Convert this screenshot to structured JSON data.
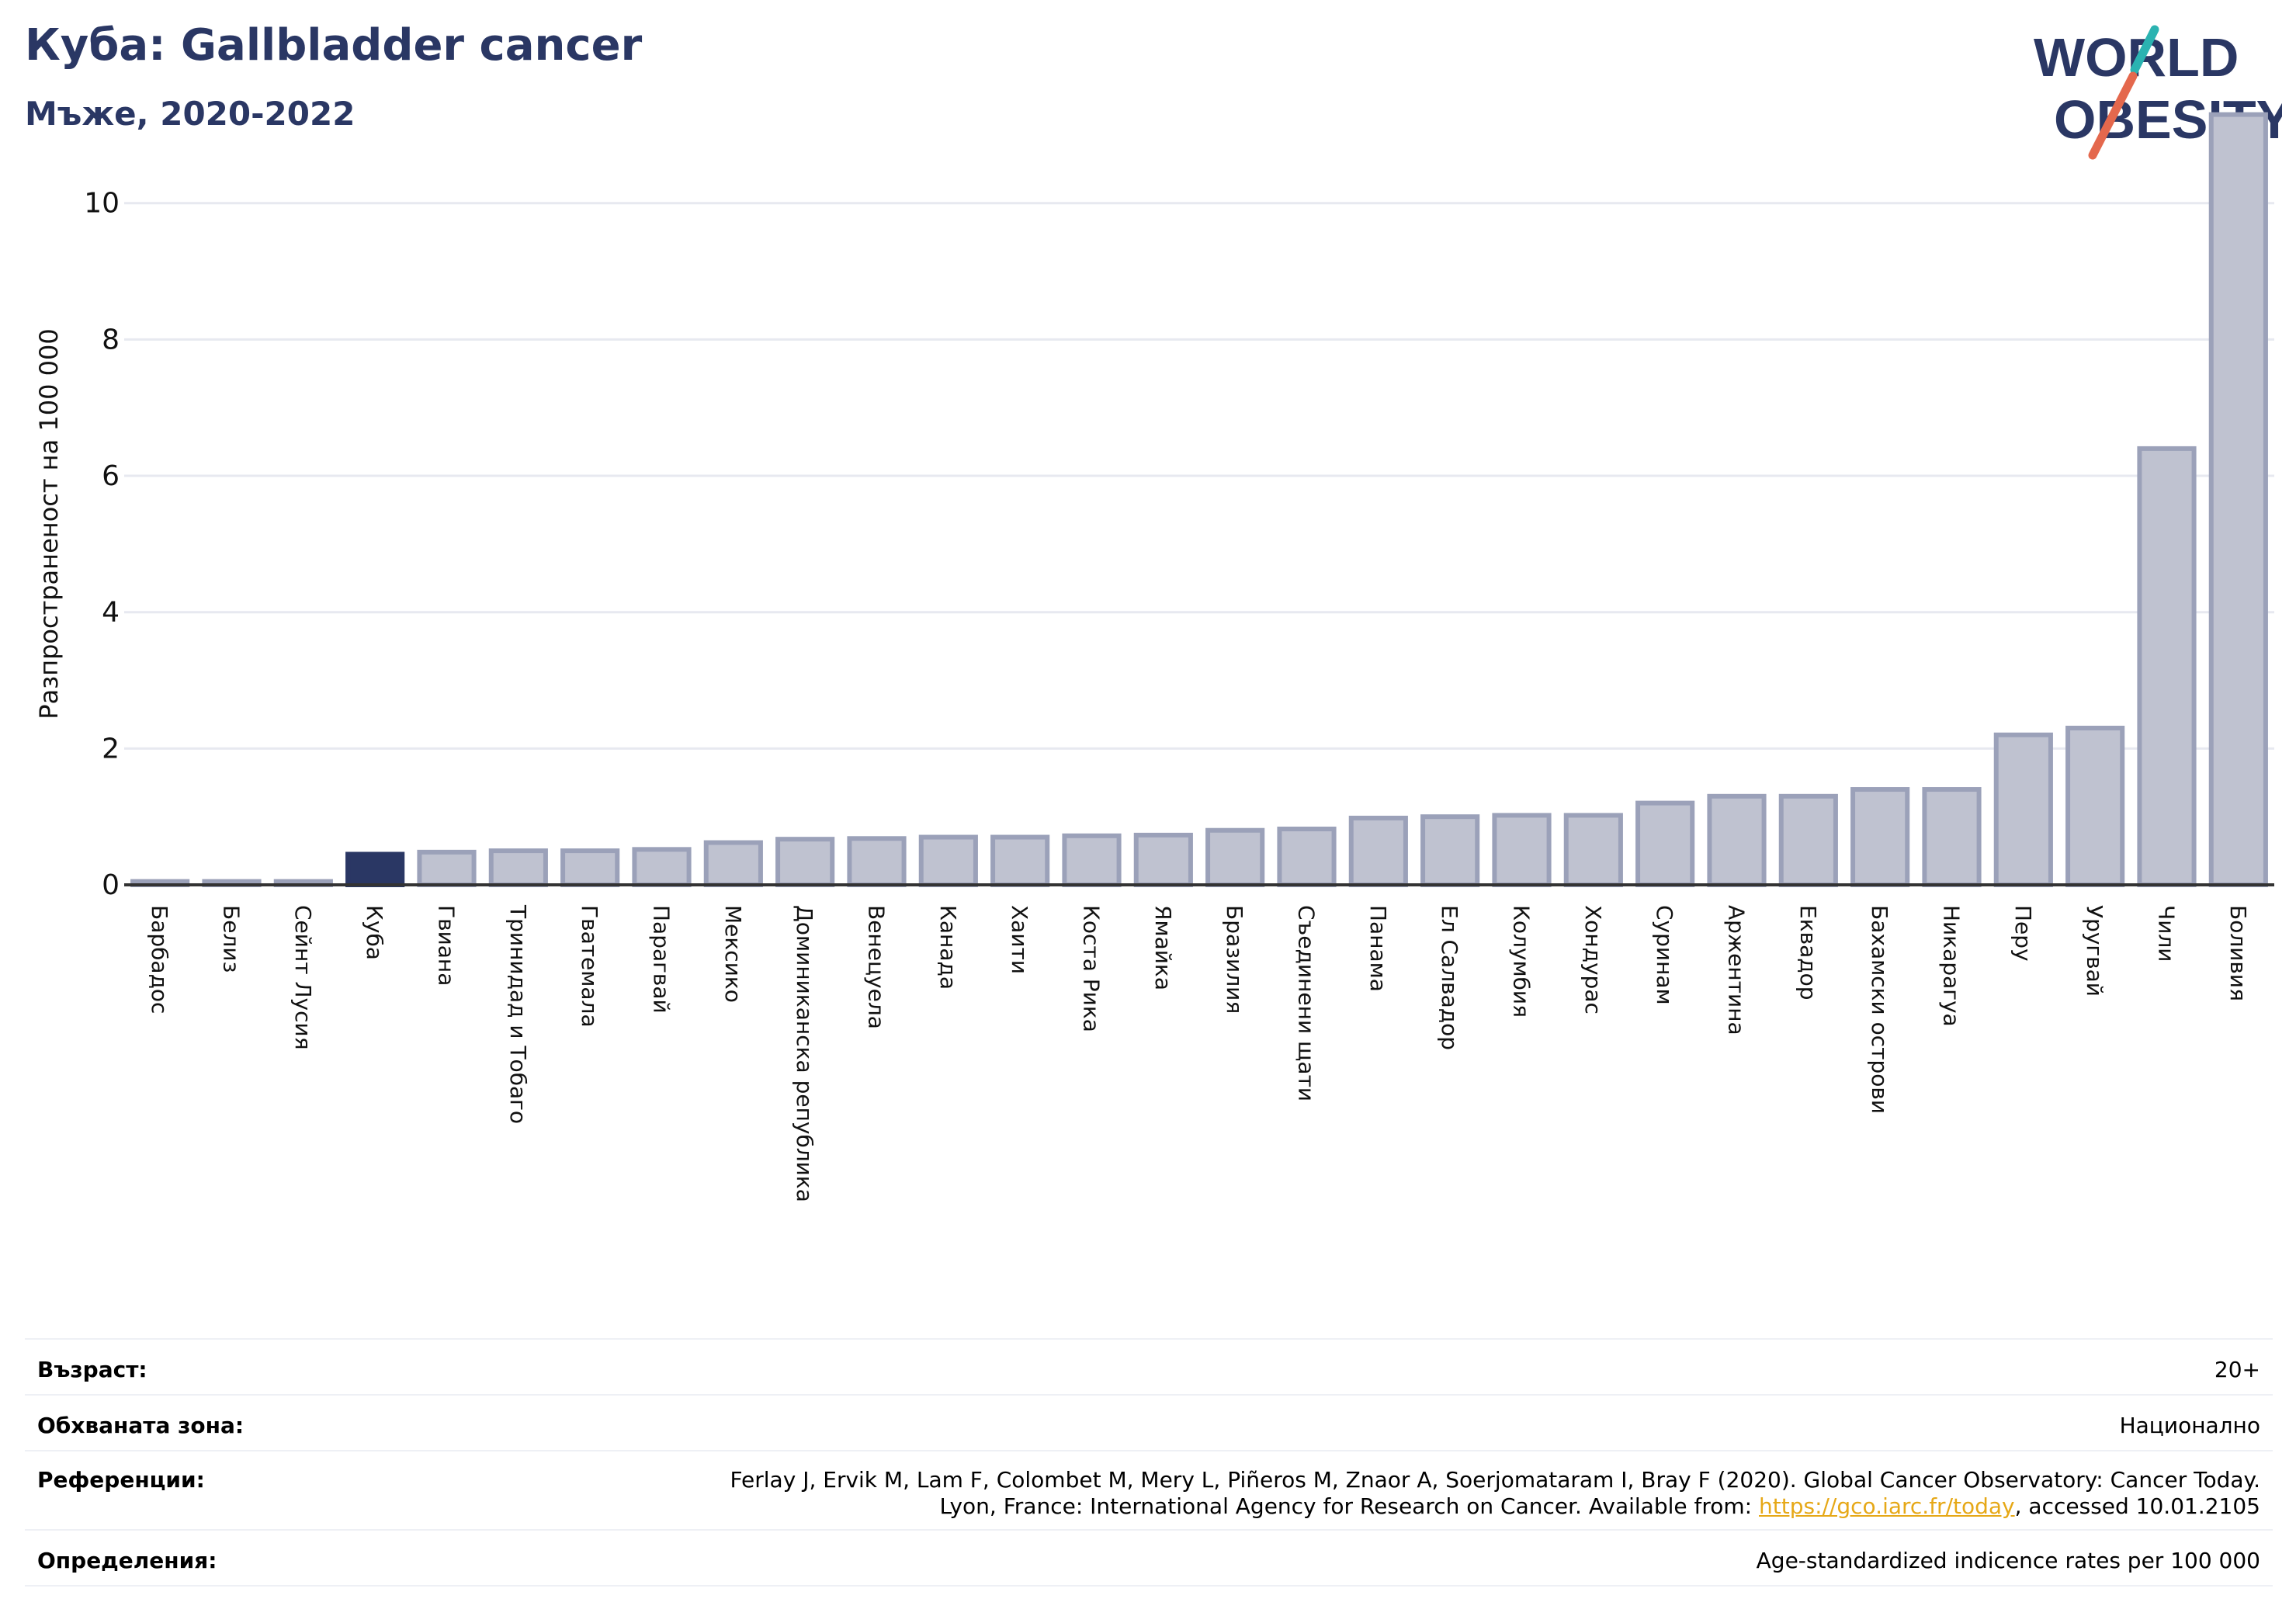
{
  "header": {
    "title": "Куба: Gallbladder cancer",
    "subtitle": "Мъже, 2020-2022"
  },
  "logo": {
    "line1": "WORLD",
    "line2": "OBESITY",
    "colors": {
      "text": "#2a3764",
      "slash_teal": "#2bb3b1",
      "slash_red": "#e4684d"
    }
  },
  "chart_data": {
    "type": "bar",
    "ylabel": "Разпространеност  на 100 000",
    "ylim": [
      0,
      11.5
    ],
    "yticks": [
      0,
      2,
      4,
      6,
      8,
      10
    ],
    "grid": true,
    "highlight": "Куба",
    "colors": {
      "bar": "#bfc2d0",
      "bar_edge": "#9ba1b9",
      "highlight": "#2a3764",
      "axis": "#333333",
      "grid": "#e7e9f0"
    },
    "categories": [
      "Барбадос",
      "Белиз",
      "Сейнт Лусия",
      "Куба",
      "Гвиана",
      "Тринидад и Тобаго",
      "Гватемала",
      "Парагвай",
      "Мексико",
      "Доминиканска република",
      "Венецуела",
      "Канада",
      "Хаити",
      "Коста Рика",
      "Ямайка",
      "Бразилия",
      "Съединени щати",
      "Панама",
      "Ел Салвадор",
      "Колумбия",
      "Хондурас",
      "Суринам",
      "Аржентина",
      "Еквадор",
      "Бахамски острови",
      "Никарагуа",
      "Перу",
      "Уругвай",
      "Чили",
      "Боливия"
    ],
    "values": [
      0.05,
      0.05,
      0.05,
      0.45,
      0.48,
      0.5,
      0.5,
      0.52,
      0.62,
      0.67,
      0.68,
      0.7,
      0.7,
      0.72,
      0.73,
      0.8,
      0.82,
      0.98,
      1.0,
      1.02,
      1.02,
      1.2,
      1.3,
      1.3,
      1.4,
      1.4,
      2.2,
      2.3,
      6.4,
      11.3
    ]
  },
  "info": {
    "age_label": "Възраст:",
    "age_value": "20+",
    "coverage_label": "Обхваната зона:",
    "coverage_value": "Национално",
    "references_label": "Референции:",
    "references_line1": "Ferlay J, Ervik M, Lam F, Colombet M, Mery L, Piñeros M, Znaor A, Soerjomataram I, Bray F (2020). Global Cancer Observatory: Cancer Today.",
    "references_line2_pre": "Lyon, France: International Agency for Research on Cancer. Available from: ",
    "references_link": "https://gco.iarc.fr/today",
    "references_line2_post": ", accessed 10.01.2105",
    "definitions_label": "Определения:",
    "definitions_value": "Age-standardized indicence rates per 100 000"
  }
}
